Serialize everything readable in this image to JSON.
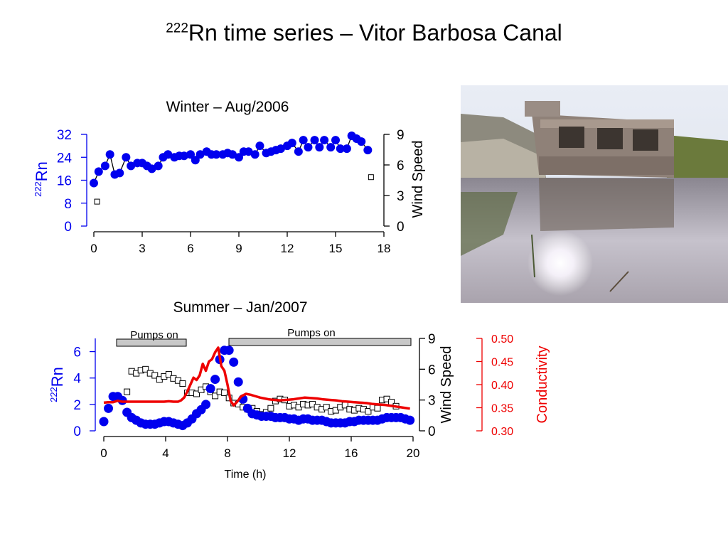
{
  "slide": {
    "title_sup": "222",
    "title_main": "Rn time series – Vitor Barbosa Canal"
  },
  "colors": {
    "rn": "#0000ee",
    "conductivity": "#ee0000",
    "wind": "#000000",
    "pumps_bar": "#c8c8c8"
  },
  "photo": {
    "description_icon": "canal-pumping-station-photo"
  },
  "chart_data": [
    {
      "type": "scatter",
      "title": "Winter – Aug/2006",
      "ylabel_sup": "222",
      "ylabel": "Rn",
      "y2label": "Wind Speed",
      "xlim": [
        0,
        18
      ],
      "xticks": [
        0,
        3,
        6,
        9,
        12,
        15,
        18
      ],
      "ylim": [
        0,
        32
      ],
      "yticks": [
        0,
        8,
        16,
        24,
        32
      ],
      "y2lim": [
        0,
        9
      ],
      "y2ticks": [
        0,
        3,
        6,
        9
      ],
      "series": [
        {
          "axis": "left",
          "x": [
            0.0,
            0.3,
            0.7,
            1.0,
            1.3,
            1.6,
            2.0,
            2.3,
            2.7,
            3.0,
            3.3,
            3.6,
            4.0,
            4.3,
            4.6,
            5.0,
            5.3,
            5.6,
            6.0,
            6.3,
            6.6,
            7.0,
            7.3,
            7.6,
            8.0,
            8.3,
            8.6,
            9.0,
            9.3,
            9.6,
            10.0,
            10.3,
            10.7,
            11.0,
            11.3,
            11.6,
            12.0,
            12.3,
            12.7,
            13.0,
            13.3,
            13.7,
            14.0,
            14.3,
            14.7,
            15.0,
            15.3,
            15.7,
            16.0,
            16.3,
            16.6,
            17.0
          ],
          "y": [
            15,
            19,
            21,
            25,
            18,
            18.5,
            24,
            21,
            22,
            22,
            21,
            20,
            21,
            24,
            25,
            24,
            24.5,
            24.5,
            25,
            23,
            25,
            26,
            25,
            25,
            25,
            25.5,
            25,
            24,
            26,
            26,
            25,
            28,
            25.5,
            26,
            26.5,
            27,
            28,
            29,
            26,
            30,
            27.5,
            30,
            27.5,
            30,
            27.5,
            30,
            27,
            27,
            31.5,
            30.5,
            29.5,
            26.5
          ]
        },
        {
          "axis": "right",
          "x": [
            0.2,
            17.2
          ],
          "y": [
            2.4,
            4.8
          ]
        }
      ]
    },
    {
      "type": "scatter",
      "title": "Summer – Jan/2007",
      "ylabel_sup": "222",
      "ylabel": "Rn",
      "y2label": "Wind Speed",
      "y3label": "Conductivity",
      "xlabel": "Time (h)",
      "xlim": [
        0,
        20
      ],
      "xticks": [
        0,
        4,
        8,
        12,
        16,
        20
      ],
      "ylim": [
        0,
        7
      ],
      "yticks": [
        0,
        2,
        4,
        6
      ],
      "y2lim": [
        0,
        9
      ],
      "y2ticks": [
        0,
        3,
        6,
        9
      ],
      "y3lim": [
        0.3,
        0.5
      ],
      "y3ticks": [
        "0.30",
        "0.35",
        "0.40",
        "0.45",
        "0.50"
      ],
      "annotations": [
        {
          "label": "Pumps on",
          "start": 0.8,
          "end": 5.3
        },
        {
          "label": "Pumps on",
          "start": 8.0,
          "end": 20.0
        }
      ],
      "series": [
        {
          "axis": "left",
          "x": [
            0,
            0.3,
            0.6,
            0.9,
            1.2,
            1.5,
            1.8,
            2.1,
            2.4,
            2.7,
            3.0,
            3.3,
            3.6,
            3.9,
            4.2,
            4.5,
            4.8,
            5.1,
            5.4,
            5.7,
            6.0,
            6.3,
            6.6,
            6.9,
            7.2,
            7.5,
            7.8,
            8.1,
            8.4,
            8.7,
            9.0,
            9.3,
            9.6,
            9.9,
            10.2,
            10.5,
            10.8,
            11.1,
            11.4,
            11.7,
            12.0,
            12.3,
            12.6,
            12.9,
            13.2,
            13.5,
            13.8,
            14.1,
            14.4,
            14.7,
            15.0,
            15.3,
            15.6,
            15.9,
            16.2,
            16.5,
            16.8,
            17.1,
            17.4,
            17.7,
            18.0,
            18.3,
            18.6,
            18.9,
            19.2,
            19.5,
            19.8
          ],
          "y": [
            0.7,
            1.7,
            2.6,
            2.6,
            2.3,
            1.4,
            1.0,
            0.8,
            0.6,
            0.5,
            0.5,
            0.5,
            0.6,
            0.7,
            0.7,
            0.6,
            0.5,
            0.4,
            0.6,
            0.9,
            1.3,
            1.6,
            2.0,
            3.2,
            3.9,
            5.4,
            6.1,
            6.1,
            5.2,
            3.7,
            2.4,
            1.7,
            1.3,
            1.2,
            1.1,
            1.1,
            1.1,
            1.0,
            1.0,
            1.0,
            0.9,
            0.9,
            0.8,
            0.9,
            0.9,
            0.8,
            0.8,
            0.8,
            0.7,
            0.6,
            0.6,
            0.6,
            0.6,
            0.7,
            0.7,
            0.8,
            0.8,
            0.8,
            0.8,
            0.8,
            0.9,
            1.0,
            1.0,
            1.0,
            1.0,
            0.9,
            0.8
          ]
        },
        {
          "axis": "right",
          "x": [
            1.5,
            1.8,
            2.1,
            2.4,
            2.7,
            3.0,
            3.3,
            3.6,
            3.9,
            4.2,
            4.5,
            4.8,
            5.1,
            5.4,
            5.7,
            6.0,
            6.3,
            6.6,
            6.9,
            7.2,
            7.5,
            7.8,
            8.1,
            8.4,
            8.7,
            9.0,
            9.3,
            9.6,
            9.9,
            10.2,
            10.5,
            10.8,
            11.1,
            11.4,
            11.7,
            12.0,
            12.3,
            12.6,
            12.9,
            13.2,
            13.5,
            13.8,
            14.1,
            14.4,
            14.7,
            15.0,
            15.3,
            15.6,
            15.9,
            16.2,
            16.5,
            16.8,
            17.1,
            17.4,
            17.7,
            18.0,
            18.3,
            18.6,
            18.9
          ],
          "y": [
            3.8,
            5.8,
            5.6,
            5.9,
            6.0,
            5.6,
            5.4,
            5.0,
            5.3,
            5.5,
            5.1,
            4.9,
            4.6,
            3.7,
            3.7,
            3.6,
            4.0,
            4.3,
            3.8,
            3.4,
            3.8,
            3.7,
            3.2,
            2.7,
            2.6,
            2.3,
            2.1,
            2.2,
            1.9,
            1.6,
            1.8,
            2.2,
            2.9,
            3.1,
            3.0,
            2.4,
            2.5,
            2.3,
            2.6,
            2.5,
            2.6,
            2.3,
            2.1,
            2.3,
            1.9,
            2.0,
            2.3,
            2.5,
            2.1,
            2.0,
            2.2,
            2.1,
            1.9,
            2.3,
            2.2,
            3.0,
            3.1,
            2.8,
            2.4
          ]
        },
        {
          "axis": "conductivity",
          "x": [
            0,
            0.3,
            0.6,
            0.9,
            1.2,
            1.5,
            1.8,
            2.1,
            2.4,
            2.7,
            3.0,
            3.3,
            3.6,
            3.9,
            4.2,
            4.5,
            4.8,
            5.0,
            5.2,
            5.4,
            5.6,
            5.8,
            6.0,
            6.2,
            6.4,
            6.6,
            6.8,
            7.0,
            7.2,
            7.4,
            7.6,
            7.8,
            8.0,
            8.2,
            8.4,
            8.6,
            8.9,
            9.2,
            9.5,
            9.8,
            10.1,
            10.4,
            10.7,
            11.0,
            11.4,
            11.8,
            12.2,
            12.6,
            13.0,
            13.4,
            13.8,
            14.2,
            14.6,
            15.0,
            15.4,
            15.8,
            16.2,
            16.6,
            17.0,
            17.4,
            17.8,
            18.2,
            18.6,
            19.0,
            19.4,
            19.8
          ],
          "y": [
            0.361,
            0.362,
            0.362,
            0.365,
            0.363,
            0.363,
            0.363,
            0.363,
            0.363,
            0.363,
            0.363,
            0.363,
            0.363,
            0.363,
            0.364,
            0.363,
            0.363,
            0.366,
            0.372,
            0.385,
            0.4,
            0.415,
            0.41,
            0.42,
            0.445,
            0.43,
            0.45,
            0.455,
            0.47,
            0.48,
            0.44,
            0.43,
            0.4,
            0.365,
            0.355,
            0.362,
            0.375,
            0.38,
            0.378,
            0.375,
            0.372,
            0.37,
            0.368,
            0.367,
            0.366,
            0.367,
            0.368,
            0.37,
            0.372,
            0.371,
            0.37,
            0.368,
            0.367,
            0.366,
            0.364,
            0.363,
            0.362,
            0.361,
            0.36,
            0.358,
            0.357,
            0.356,
            0.354,
            0.352,
            0.35,
            0.348
          ]
        }
      ]
    }
  ]
}
